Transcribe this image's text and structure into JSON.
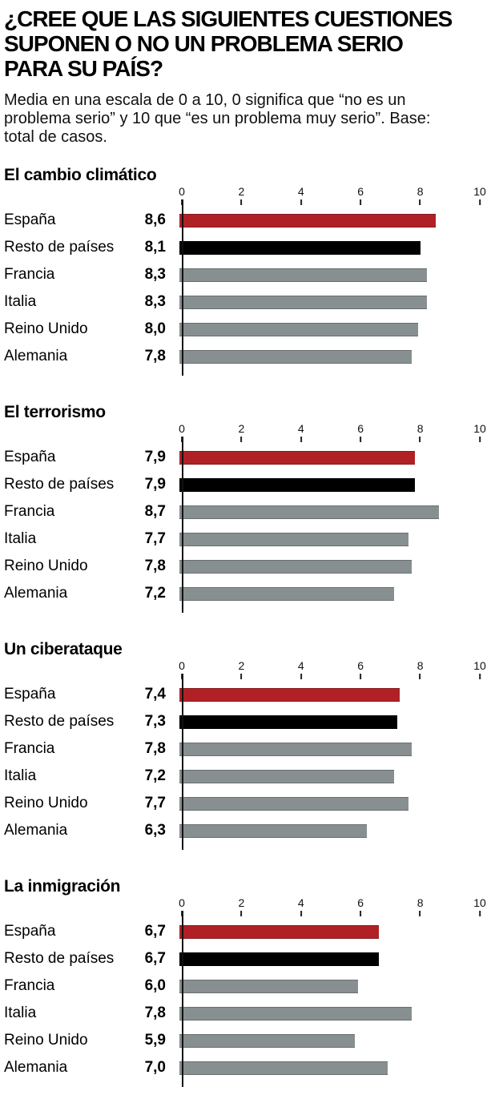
{
  "header": {
    "title_lines": [
      "¿CREE QUE LAS SIGUIENTES CUESTIONES",
      "SUPONEN O NO UN PROBLEMA SERIO",
      "PARA SU PAÍS?"
    ],
    "subtitle_lines": [
      "Media en una escala de 0 a 10, 0 significa que “no es un",
      "problema serio” y 10 que “es un problema muy serio”. Base:",
      "total de casos."
    ]
  },
  "colors": {
    "spain_red": "#b02125",
    "rest_black": "#000000",
    "country_gray": "#878f90",
    "axis": "#111111"
  },
  "chart_data": [
    {
      "type": "bar",
      "title": "El cambio climático",
      "categories": [
        "España",
        "Resto de países",
        "Francia",
        "Italia",
        "Reino Unido",
        "Alemania"
      ],
      "values": [
        8.6,
        8.1,
        8.3,
        8.3,
        8.0,
        7.8
      ],
      "value_labels": [
        "8,6",
        "8,1",
        "8,3",
        "8,3",
        "8,0",
        "7,8"
      ],
      "bar_colors": [
        "spain_red",
        "rest_black",
        "country_gray",
        "country_gray",
        "country_gray",
        "country_gray"
      ],
      "xlim": [
        0,
        10
      ],
      "xticks": [
        0,
        2,
        4,
        6,
        8,
        10
      ],
      "xtick_labels": [
        "0",
        "2",
        "4",
        "6",
        "8",
        "10"
      ],
      "xlabel": "",
      "ylabel": "",
      "grid": false,
      "legend": false
    },
    {
      "type": "bar",
      "title": "El terrorismo",
      "categories": [
        "España",
        "Resto de países",
        "Francia",
        "Italia",
        "Reino Unido",
        "Alemania"
      ],
      "values": [
        7.9,
        7.9,
        8.7,
        7.7,
        7.8,
        7.2
      ],
      "value_labels": [
        "7,9",
        "7,9",
        "8,7",
        "7,7",
        "7,8",
        "7,2"
      ],
      "bar_colors": [
        "spain_red",
        "rest_black",
        "country_gray",
        "country_gray",
        "country_gray",
        "country_gray"
      ],
      "xlim": [
        0,
        10
      ],
      "xticks": [
        0,
        2,
        4,
        6,
        8,
        10
      ],
      "xtick_labels": [
        "0",
        "2",
        "4",
        "6",
        "8",
        "10"
      ],
      "xlabel": "",
      "ylabel": "",
      "grid": false,
      "legend": false
    },
    {
      "type": "bar",
      "title": "Un ciberataque",
      "categories": [
        "España",
        "Resto de países",
        "Francia",
        "Italia",
        "Reino Unido",
        "Alemania"
      ],
      "values": [
        7.4,
        7.3,
        7.8,
        7.2,
        7.7,
        6.3
      ],
      "value_labels": [
        "7,4",
        "7,3",
        "7,8",
        "7,2",
        "7,7",
        "6,3"
      ],
      "bar_colors": [
        "spain_red",
        "rest_black",
        "country_gray",
        "country_gray",
        "country_gray",
        "country_gray"
      ],
      "xlim": [
        0,
        10
      ],
      "xticks": [
        0,
        2,
        4,
        6,
        8,
        10
      ],
      "xtick_labels": [
        "0",
        "2",
        "4",
        "6",
        "8",
        "10"
      ],
      "xlabel": "",
      "ylabel": "",
      "grid": false,
      "legend": false
    },
    {
      "type": "bar",
      "title": "La inmigración",
      "categories": [
        "España",
        "Resto de países",
        "Francia",
        "Italia",
        "Reino Unido",
        "Alemania"
      ],
      "values": [
        6.7,
        6.7,
        6.0,
        7.8,
        5.9,
        7.0
      ],
      "value_labels": [
        "6,7",
        "6,7",
        "6,0",
        "7,8",
        "5,9",
        "7,0"
      ],
      "bar_colors": [
        "spain_red",
        "rest_black",
        "country_gray",
        "country_gray",
        "country_gray",
        "country_gray"
      ],
      "xlim": [
        0,
        10
      ],
      "xticks": [
        0,
        2,
        4,
        6,
        8,
        10
      ],
      "xtick_labels": [
        "0",
        "2",
        "4",
        "6",
        "8",
        "10"
      ],
      "xlabel": "",
      "ylabel": "",
      "grid": false,
      "legend": false
    }
  ]
}
